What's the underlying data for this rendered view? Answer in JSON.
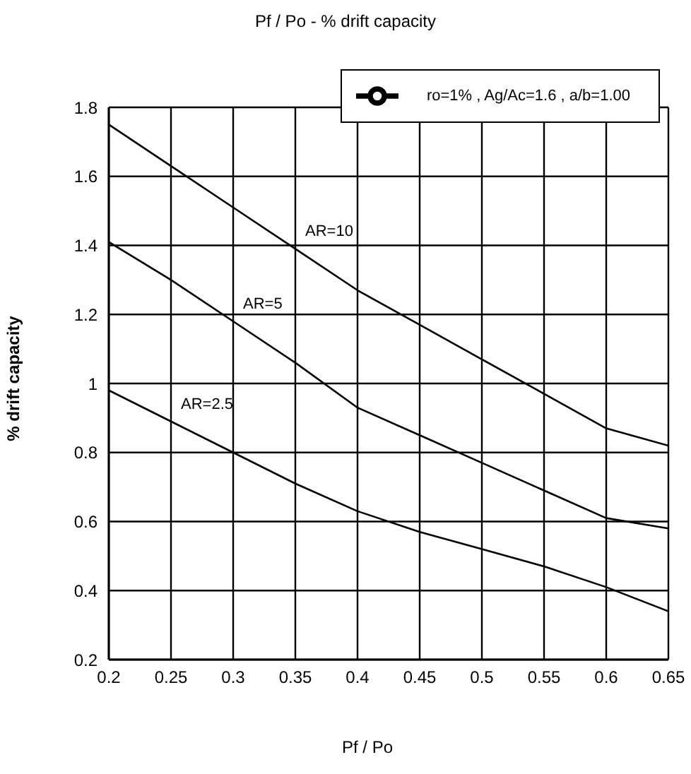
{
  "chart_data": {
    "type": "line",
    "title": "Pf / Po - % drift capacity",
    "xlabel": "Pf / Po",
    "ylabel": "% drift capacity",
    "legend": "top right",
    "grid": true,
    "marker": "none",
    "line_style": "solid",
    "x": [
      0.2,
      0.25,
      0.3,
      0.35,
      0.4,
      0.45,
      0.5,
      0.55,
      0.6,
      0.65
    ],
    "series": [
      {
        "name": "ro=1% , Ag/Ac=1.6 , a/b=1.00",
        "color": "#000000",
        "values": [
          1.75,
          1.63,
          1.51,
          1.39,
          1.27,
          1.17,
          1.07,
          0.97,
          0.87,
          0.82
        ]
      },
      {
        "color": "#000000",
        "values": [
          1.41,
          1.3,
          1.18,
          1.06,
          0.93,
          0.85,
          0.77,
          0.69,
          0.61,
          0.58
        ]
      },
      {
        "color": "#000000",
        "values": [
          0.98,
          0.89,
          0.8,
          0.71,
          0.63,
          0.57,
          0.52,
          0.47,
          0.41,
          0.34
        ]
      }
    ],
    "annotations": [
      {
        "text": "AR=10",
        "x": 0.35,
        "y": 1.39
      },
      {
        "text": "AR=5",
        "x": 0.3,
        "y": 1.18
      },
      {
        "text": "AR=2.5",
        "x": 0.25,
        "y": 0.89
      }
    ],
    "xlim": [
      0.2,
      0.65
    ],
    "xticks": [
      0.2,
      0.25,
      0.3,
      0.35,
      0.4,
      0.45,
      0.5,
      0.55,
      0.6,
      0.65
    ],
    "ylim": [
      0.2,
      1.8
    ],
    "yticks": [
      0.2,
      0.4,
      0.6,
      0.8,
      1,
      1.2,
      1.4,
      1.6,
      1.8
    ]
  }
}
